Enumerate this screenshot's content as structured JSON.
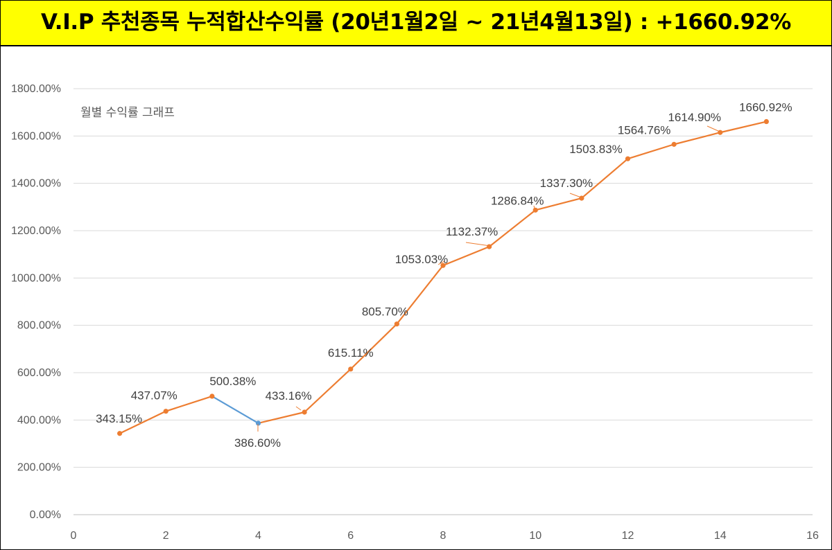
{
  "banner": {
    "title": "V.I.P 추천종목 누적합산수익률 (20년1월2일 ~ 21년4월13일) : +1660.92%"
  },
  "chart_data": {
    "type": "line",
    "title": "월별 수익률 그래프",
    "xlabel": "",
    "ylabel": "",
    "xlim": [
      0,
      16
    ],
    "ylim": [
      0,
      1800
    ],
    "x_ticks": [
      0,
      2,
      4,
      6,
      8,
      10,
      12,
      14,
      16
    ],
    "y_ticks": [
      0,
      200,
      400,
      600,
      800,
      1000,
      1200,
      1400,
      1600,
      1800
    ],
    "y_tick_labels": [
      "0.00%",
      "200.00%",
      "400.00%",
      "600.00%",
      "800.00%",
      "1000.00%",
      "1200.00%",
      "1400.00%",
      "1600.00%",
      "1800.00%"
    ],
    "grid": true,
    "series_color": "#ed7d31",
    "highlight_color": "#5b9bd5",
    "series": [
      {
        "x": [
          1,
          2,
          3,
          4,
          5,
          6,
          7,
          8,
          9,
          10,
          11,
          12,
          13,
          14,
          15
        ],
        "values": [
          343.15,
          437.07,
          500.38,
          386.6,
          433.16,
          615.11,
          805.7,
          1053.03,
          1132.37,
          1286.84,
          1337.3,
          1503.83,
          1564.76,
          1614.9,
          1660.92
        ],
        "labels": [
          "343.15%",
          "437.07%",
          "500.38%",
          "386.60%",
          "433.16%",
          "615.11%",
          "805.70%",
          "1053.03%",
          "1132.37%",
          "1286.84%",
          "1337.30%",
          "1503.83%",
          "1564.76%",
          "1614.90%",
          "1660.92%"
        ]
      }
    ]
  }
}
